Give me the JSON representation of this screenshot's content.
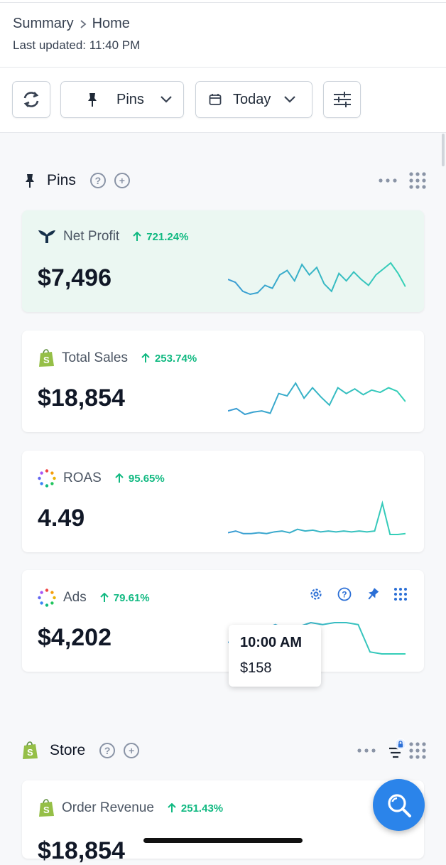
{
  "header": {
    "breadcrumb": [
      "Summary",
      "Home"
    ],
    "last_updated": "Last updated: 11:40 PM"
  },
  "toolbar": {
    "refresh_icon": "refresh-icon",
    "pins_label": "Pins",
    "date_label": "Today",
    "filter_icon": "sliders-icon"
  },
  "sections": {
    "pins": {
      "title": "Pins"
    },
    "store": {
      "title": "Store"
    }
  },
  "cards": [
    {
      "name": "Net Profit",
      "change": "721.24%",
      "value": "$7,496",
      "icon": "whale-logo-icon",
      "trend": [
        30,
        28,
        22,
        20,
        21,
        26,
        24,
        33,
        36,
        29,
        40,
        33,
        38,
        27,
        22,
        34,
        29,
        35,
        30,
        26,
        33,
        37,
        41,
        34,
        25
      ]
    },
    {
      "name": "Total Sales",
      "change": "253.74%",
      "value": "$18,854",
      "icon": "shopify-icon",
      "trend": [
        20,
        22,
        17,
        19,
        20,
        18,
        35,
        33,
        44,
        31,
        40,
        32,
        25,
        40,
        35,
        39,
        34,
        38,
        36,
        40,
        37,
        28
      ]
    },
    {
      "name": "ROAS",
      "change": "95.65%",
      "value": "4.49",
      "icon": "rainbow-dots-icon",
      "trend": [
        10,
        12,
        9,
        9,
        10,
        9,
        11,
        12,
        10,
        14,
        12,
        13,
        11,
        12,
        11,
        12,
        11,
        12,
        11,
        12,
        44,
        8,
        8,
        9
      ]
    },
    {
      "name": "Ads",
      "change": "79.61%",
      "value": "$4,202",
      "icon": "rainbow-dots-icon",
      "trend": [
        20,
        18,
        36,
        33,
        38,
        33,
        36,
        40,
        38,
        40,
        40,
        38,
        10,
        8,
        8,
        8
      ]
    },
    {
      "name": "Order Revenue",
      "change": "251.43%",
      "value": "$18,854",
      "icon": "shopify-icon"
    }
  ],
  "tooltip": {
    "time": "10:00 AM",
    "value": "$158"
  },
  "colors": {
    "accent": "#2b84ea",
    "positive": "#10b981",
    "spark": "#3b9bd4",
    "spark_alt": "#34d1b6"
  }
}
